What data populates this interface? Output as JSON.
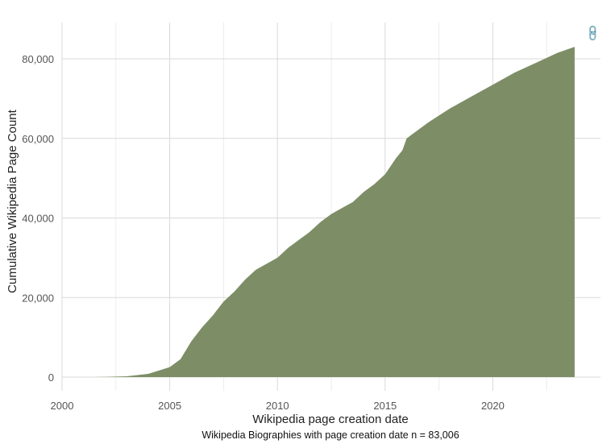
{
  "chart_data": {
    "type": "area",
    "xlabel": "Wikipedia page creation date",
    "ylabel": "Cumulative Wikipedia Page Count",
    "caption": "Wikipedia Biographies with page creation date n = 83,006",
    "xlim": [
      2000,
      2025
    ],
    "ylim": [
      0,
      89000
    ],
    "x_ticks": [
      2000,
      2005,
      2010,
      2015,
      2020
    ],
    "x_tick_labels": [
      "2000",
      "2005",
      "2010",
      "2015",
      "2020"
    ],
    "y_ticks": [
      0,
      20000,
      40000,
      60000,
      80000
    ],
    "y_tick_labels": [
      "0",
      "20,000",
      "40,000",
      "60,000",
      "80,000"
    ],
    "grid": true,
    "fill_color": "#7a8c63",
    "x": [
      2001.5,
      2002,
      2003,
      2004,
      2005,
      2005.5,
      2006,
      2006.5,
      2007,
      2007.5,
      2008,
      2008.5,
      2009,
      2010,
      2010.5,
      2011,
      2011.5,
      2012,
      2012.5,
      2013,
      2013.5,
      2014,
      2014.5,
      2015,
      2015.5,
      2015.8,
      2016,
      2016.5,
      2017,
      2018,
      2019,
      2020,
      2021,
      2022,
      2023,
      2023.8
    ],
    "y": [
      0,
      50,
      200,
      800,
      2500,
      4500,
      9000,
      12500,
      15500,
      19000,
      21500,
      24500,
      27000,
      30000,
      32500,
      34500,
      36500,
      39000,
      41000,
      42500,
      44000,
      46500,
      48500,
      51000,
      55000,
      57000,
      60000,
      62000,
      64000,
      67500,
      70500,
      73500,
      76500,
      79000,
      81500,
      83006
    ]
  },
  "link_icon": "link-icon"
}
